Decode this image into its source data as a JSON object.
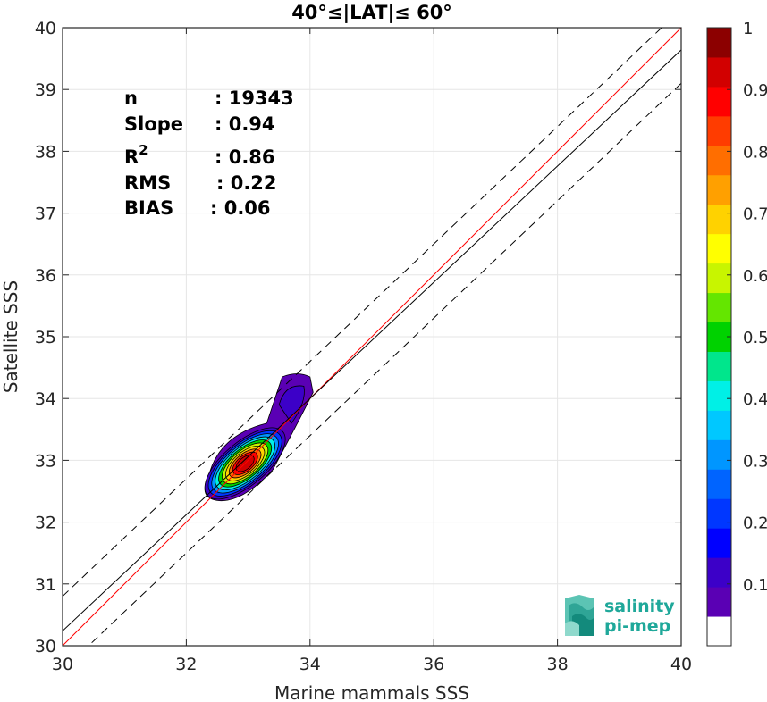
{
  "chart_data": {
    "type": "heatmap",
    "title": "40°≤|LAT|≤ 60°",
    "xlabel": "Marine mammals SSS",
    "ylabel": "Satellite SSS",
    "xlim": [
      30,
      40
    ],
    "ylim": [
      30,
      40
    ],
    "xticks": [
      "30",
      "32",
      "34",
      "36",
      "38",
      "40"
    ],
    "yticks": [
      "30",
      "31",
      "32",
      "33",
      "34",
      "35",
      "36",
      "37",
      "38",
      "39",
      "40"
    ],
    "grid": true,
    "stats": [
      {
        "label": "n",
        "value": ": 19343"
      },
      {
        "label": "Slope",
        "value": ": 0.94"
      },
      {
        "label": "R",
        "sup": "2",
        "value": ": 0.86"
      },
      {
        "label": "RMS",
        "value": ": 0.22"
      },
      {
        "label": "BIAS",
        "value": ": 0.06"
      }
    ],
    "lines": [
      {
        "kind": "identity",
        "color": "#ff0000",
        "x": [
          30,
          40
        ],
        "y": [
          30,
          40
        ]
      },
      {
        "kind": "identity-plus-offset",
        "color": "#000000",
        "dashed": false,
        "x": [
          30,
          40
        ],
        "y": [
          30.24,
          39.64
        ]
      },
      {
        "kind": "upper-bound",
        "color": "#000000",
        "dashed": true,
        "x": [
          30,
          40
        ],
        "y": [
          30.8,
          40.3
        ]
      },
      {
        "kind": "lower-bound",
        "color": "#000000",
        "dashed": true,
        "x": [
          30,
          40
        ],
        "y": [
          29.6,
          39.1
        ]
      }
    ],
    "density_center": {
      "x": 32.95,
      "y": 32.95
    },
    "density_levels": [
      0.05,
      0.1,
      0.2,
      0.3,
      0.4,
      0.5,
      0.6,
      0.7,
      0.8,
      0.9,
      0.95
    ],
    "colorbar": {
      "ticks": [
        "0.1",
        "0.2",
        "0.3",
        "0.4",
        "0.5",
        "0.6",
        "0.7",
        "0.8",
        "0.9",
        "1"
      ],
      "range": [
        0,
        1
      ],
      "colors": [
        "#ffffff",
        "#5a00b4",
        "#3c00c8",
        "#0000ff",
        "#0037ff",
        "#0064ff",
        "#0096ff",
        "#00c8ff",
        "#00f0e6",
        "#00e68c",
        "#00d200",
        "#64e600",
        "#c8f500",
        "#ffff00",
        "#ffd200",
        "#ffa000",
        "#ff6e00",
        "#ff3c00",
        "#ff0000",
        "#d20000",
        "#8c0000"
      ]
    }
  },
  "logo": {
    "line1": "salinity",
    "line2": "pi-mep",
    "color": "#1fa89a"
  }
}
